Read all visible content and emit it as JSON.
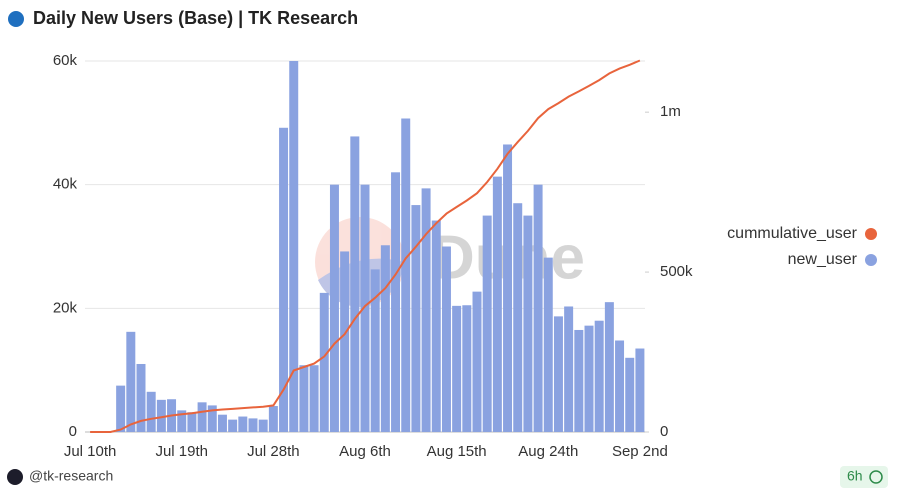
{
  "header": {
    "title": "Daily New Users (Base) | TK Research"
  },
  "footer": {
    "author": "@tk-research",
    "age": "6h"
  },
  "chart_data": {
    "type": "bar-line",
    "watermark": "Dune",
    "categories": [
      "Jul 10th",
      null,
      null,
      null,
      null,
      null,
      null,
      null,
      null,
      "Jul 19th",
      null,
      null,
      null,
      null,
      null,
      null,
      null,
      null,
      "Jul 28th",
      null,
      null,
      null,
      null,
      null,
      null,
      null,
      null,
      "Aug 6th",
      null,
      null,
      null,
      null,
      null,
      null,
      null,
      null,
      "Aug 15th",
      null,
      null,
      null,
      null,
      null,
      null,
      null,
      null,
      "Aug 24th",
      null,
      null,
      null,
      null,
      null,
      null,
      null,
      null,
      "Sep 2nd"
    ],
    "series": [
      {
        "name": "cummulative_user",
        "color": "#e8643c",
        "kind": "line",
        "axis": "y2",
        "values": [
          0,
          0,
          0,
          7500,
          23700,
          34700,
          41200,
          46400,
          51700,
          55200,
          58400,
          63200,
          67500,
          70300,
          72300,
          74800,
          77000,
          79000,
          83200,
          132400,
          192400,
          203200,
          214000,
          236500,
          276500,
          305700,
          353500,
          393500,
          419800,
          450000,
          492000,
          542700,
          579400,
          618800,
          653000,
          683000,
          703400,
          723900,
          746600,
          781600,
          822900,
          869400,
          906400,
          941400,
          981400,
          1009600,
          1028300,
          1048600,
          1065100,
          1082300,
          1100300,
          1121300,
          1136100,
          1148100,
          1161600
        ]
      },
      {
        "name": "new_user",
        "color": "#8aa2e0",
        "kind": "bar",
        "values": [
          0,
          0,
          0,
          7500,
          16200,
          11000,
          6500,
          5200,
          5300,
          3500,
          3200,
          4800,
          4300,
          2800,
          2000,
          2500,
          2200,
          2000,
          4200,
          49200,
          60000,
          10800,
          10800,
          22500,
          40000,
          29200,
          47800,
          40000,
          26300,
          30200,
          42000,
          50700,
          36700,
          39400,
          34200,
          30000,
          20400,
          20500,
          22700,
          35000,
          41300,
          46500,
          37000,
          35000,
          40000,
          28200,
          18700,
          20300,
          16500,
          17200,
          18000,
          21000,
          14800,
          12000,
          13500
        ]
      }
    ],
    "ylim": [
      0,
      60000
    ],
    "yticks": [
      0,
      {
        "value": 20000,
        "label": "20k"
      },
      {
        "value": 40000,
        "label": "40k"
      },
      {
        "value": 60000,
        "label": "60k"
      }
    ],
    "y2lim": [
      0,
      1160000
    ],
    "y2ticks": [
      0,
      {
        "value": 500000,
        "label": "500k"
      },
      {
        "value": 1000000,
        "label": "1m"
      }
    ],
    "grid": true,
    "legend": "right"
  }
}
